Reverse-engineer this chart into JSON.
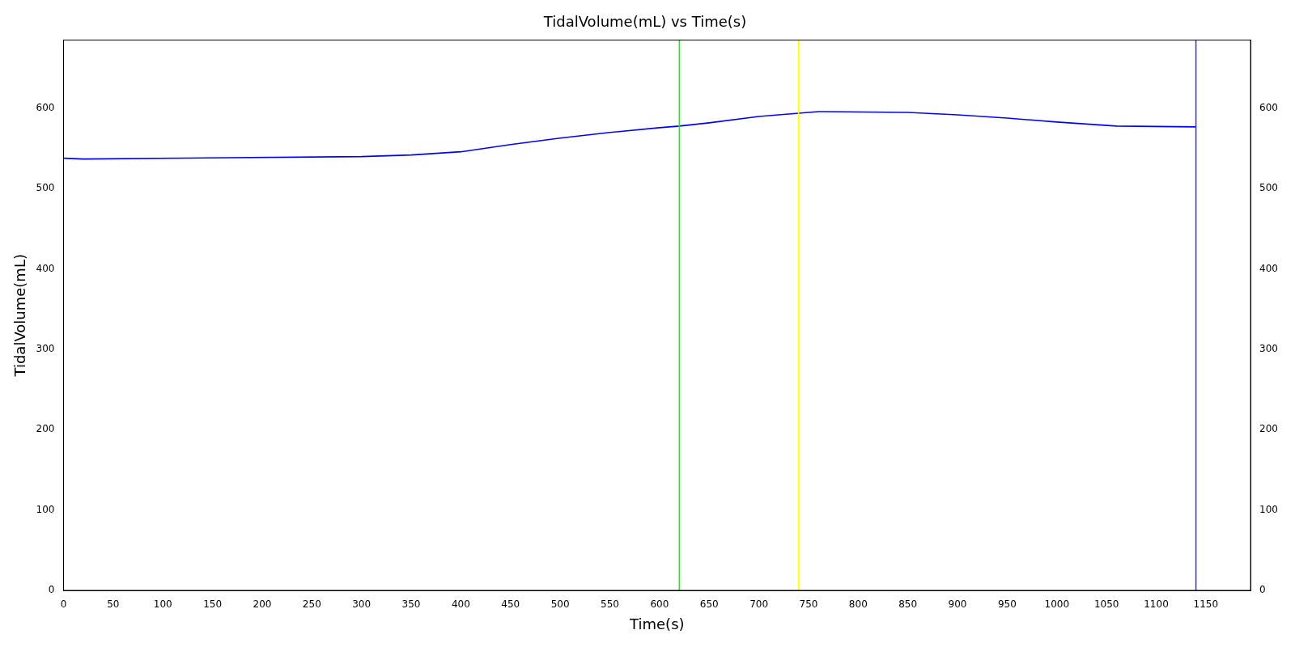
{
  "chart_data": {
    "type": "line",
    "title": "TidalVolume(mL) vs Time(s)",
    "xlabel": "Time(s)",
    "ylabel": "TidalVolume(mL)",
    "x": [
      0,
      20,
      300,
      350,
      400,
      450,
      500,
      550,
      600,
      620,
      650,
      700,
      740,
      760,
      850,
      900,
      950,
      1000,
      1060,
      1140
    ],
    "series": [
      {
        "color": "#0000ff",
        "values": [
          538,
          537,
          540,
          542,
          546,
          555,
          563,
          570,
          576,
          578,
          582,
          590,
          594,
          596,
          595,
          592,
          588,
          583,
          578,
          577
        ]
      }
    ],
    "xlim": [
      0,
      1195
    ],
    "xticks": [
      0,
      50,
      100,
      150,
      200,
      250,
      300,
      350,
      400,
      450,
      500,
      550,
      600,
      650,
      700,
      750,
      800,
      850,
      900,
      950,
      1000,
      1050,
      1100,
      1150
    ],
    "ylim": [
      0,
      685
    ],
    "yticks": [
      0,
      100,
      200,
      300,
      400,
      500,
      600
    ],
    "y2lim": [
      0,
      685
    ],
    "y2ticks": [
      0,
      100,
      200,
      300,
      400,
      500,
      600
    ],
    "ref_lines": [
      {
        "axis": "x",
        "value": 620,
        "color": "#00ff00"
      },
      {
        "axis": "x",
        "value": 740,
        "color": "#ffff00"
      },
      {
        "axis": "x",
        "value": 1140,
        "color": "#4040d0"
      }
    ],
    "grid": false,
    "legend": false,
    "marker": "none",
    "line_style": "solid"
  }
}
